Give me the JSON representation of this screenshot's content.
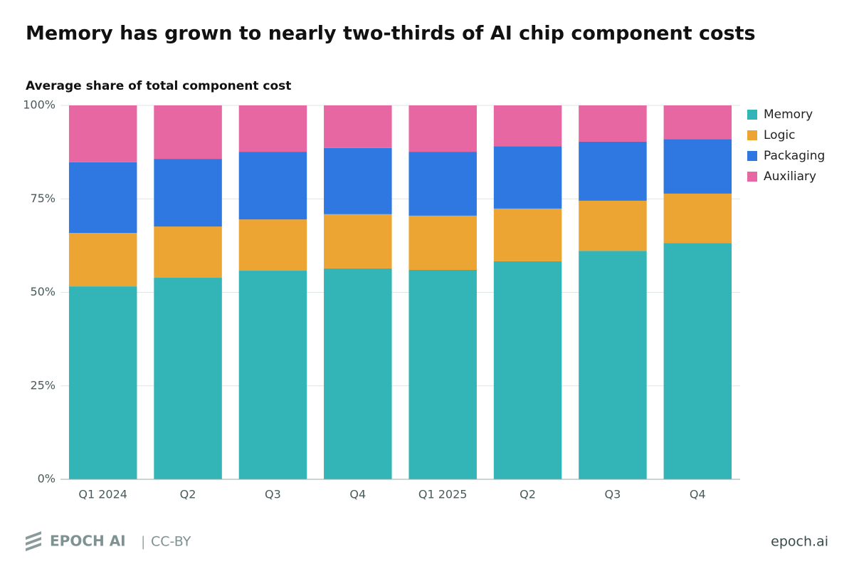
{
  "chart_data": {
    "type": "stacked_bar",
    "title": "Memory has grown to nearly two-thirds of AI chip component costs",
    "y_label": "Average share of total component cost",
    "categories": [
      "Q1 2024",
      "Q2",
      "Q3",
      "Q4",
      "Q1 2025",
      "Q2",
      "Q3",
      "Q4"
    ],
    "series": [
      {
        "name": "Memory",
        "color": "#33b5b7",
        "values": [
          51.6,
          53.9,
          55.8,
          56.4,
          56.0,
          58.3,
          61.1,
          63.2
        ]
      },
      {
        "name": "Logic",
        "color": "#eca433",
        "values": [
          14.3,
          13.7,
          13.7,
          14.5,
          14.5,
          14.1,
          13.4,
          13.2
        ]
      },
      {
        "name": "Packaging",
        "color": "#2f78e1",
        "values": [
          18.9,
          18.1,
          18.1,
          17.7,
          17.1,
          16.7,
          15.8,
          14.6
        ]
      },
      {
        "name": "Auxiliary",
        "color": "#e667a2",
        "values": [
          15.2,
          14.3,
          12.4,
          11.4,
          12.4,
          10.9,
          9.7,
          9.0
        ]
      }
    ],
    "ylim": [
      0,
      100
    ],
    "yticks": [
      {
        "value": 0,
        "label": "0%"
      },
      {
        "value": 25,
        "label": "25%"
      },
      {
        "value": 50,
        "label": "50%"
      },
      {
        "value": 75,
        "label": "75%"
      },
      {
        "value": 100,
        "label": "100%"
      }
    ],
    "grid": true,
    "legend": "right"
  },
  "footer": {
    "brand": "EPOCH AI",
    "license": "CC-BY",
    "site": "epoch.ai"
  }
}
